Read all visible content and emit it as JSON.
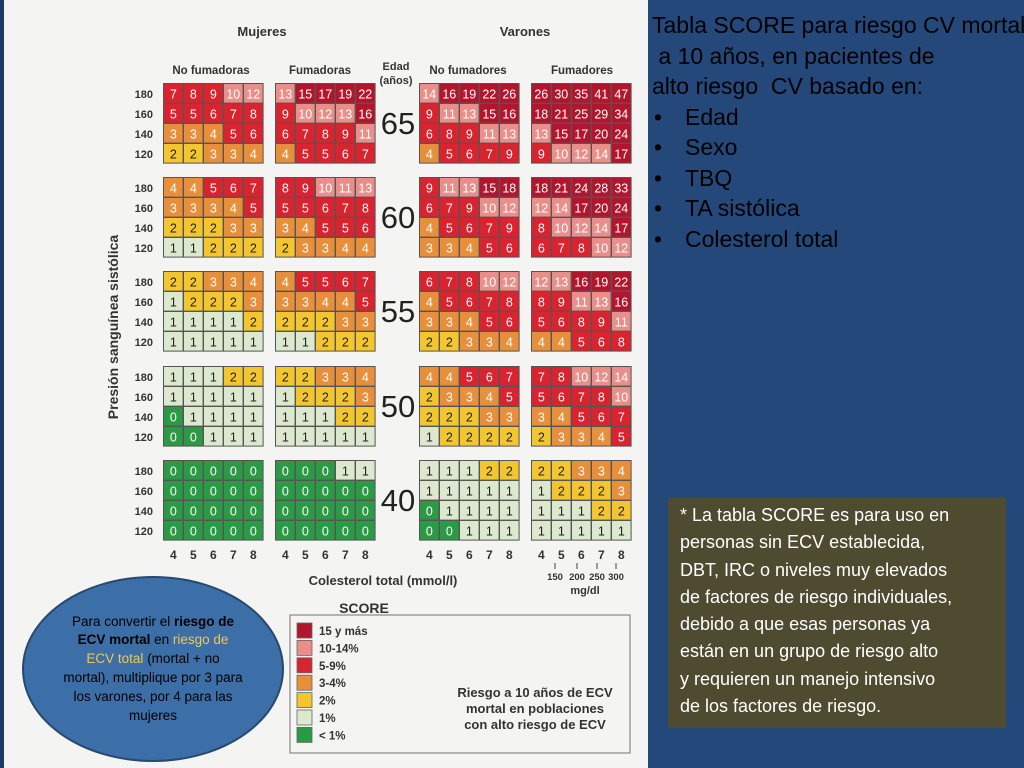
{
  "chart_data": {
    "type": "heatmap",
    "title": "SCORE",
    "group_labels": [
      "Mujeres",
      "Varones"
    ],
    "subgroup_labels": [
      "No fumadoras",
      "Fumadoras",
      "No fumadores",
      "Fumadores"
    ],
    "age_header": "Edad (años)",
    "ages": [
      "65",
      "60",
      "55",
      "50",
      "40"
    ],
    "sbp_labels": [
      "180",
      "160",
      "140",
      "120"
    ],
    "cholesterol_labels": [
      "4",
      "5",
      "6",
      "7",
      "8"
    ],
    "mgdl_labels": [
      "150",
      "200",
      "250",
      "300"
    ],
    "mgdl_unit": "mg/dl",
    "ylabel": "Presión sanguínea sistólica",
    "xlabel": "Colesterol total (mmol/l)",
    "panels": [
      [
        [
          [
            7,
            8,
            9,
            10,
            12
          ],
          [
            5,
            5,
            6,
            7,
            8
          ],
          [
            3,
            3,
            4,
            5,
            6
          ],
          [
            2,
            2,
            3,
            3,
            4
          ]
        ],
        [
          [
            13,
            15,
            17,
            19,
            22
          ],
          [
            9,
            10,
            12,
            13,
            16
          ],
          [
            6,
            7,
            8,
            9,
            11
          ],
          [
            4,
            5,
            5,
            6,
            7
          ]
        ],
        [
          [
            14,
            16,
            19,
            22,
            26
          ],
          [
            9,
            11,
            13,
            15,
            16
          ],
          [
            6,
            8,
            9,
            11,
            13
          ],
          [
            4,
            5,
            6,
            7,
            9
          ]
        ],
        [
          [
            26,
            30,
            35,
            41,
            47
          ],
          [
            18,
            21,
            25,
            29,
            34
          ],
          [
            13,
            15,
            17,
            20,
            24
          ],
          [
            9,
            10,
            12,
            14,
            17
          ]
        ]
      ],
      [
        [
          [
            4,
            4,
            5,
            6,
            7
          ],
          [
            3,
            3,
            3,
            4,
            5
          ],
          [
            2,
            2,
            2,
            3,
            3
          ],
          [
            1,
            1,
            2,
            2,
            2
          ]
        ],
        [
          [
            8,
            9,
            10,
            11,
            13
          ],
          [
            5,
            5,
            6,
            7,
            8
          ],
          [
            3,
            4,
            5,
            5,
            6
          ],
          [
            2,
            3,
            3,
            4,
            4
          ]
        ],
        [
          [
            9,
            11,
            13,
            15,
            18
          ],
          [
            6,
            7,
            9,
            10,
            12
          ],
          [
            4,
            5,
            6,
            7,
            9
          ],
          [
            3,
            3,
            4,
            5,
            6
          ]
        ],
        [
          [
            18,
            21,
            24,
            28,
            33
          ],
          [
            12,
            14,
            17,
            20,
            24
          ],
          [
            8,
            10,
            12,
            14,
            17
          ],
          [
            6,
            7,
            8,
            10,
            12
          ]
        ]
      ],
      [
        [
          [
            2,
            2,
            3,
            3,
            4
          ],
          [
            1,
            2,
            2,
            2,
            3
          ],
          [
            1,
            1,
            1,
            1,
            2
          ],
          [
            1,
            1,
            1,
            1,
            1
          ]
        ],
        [
          [
            4,
            5,
            5,
            6,
            7
          ],
          [
            3,
            3,
            4,
            4,
            5
          ],
          [
            2,
            2,
            2,
            3,
            3
          ],
          [
            1,
            1,
            2,
            2,
            2
          ]
        ],
        [
          [
            6,
            7,
            8,
            10,
            12
          ],
          [
            4,
            5,
            6,
            7,
            8
          ],
          [
            3,
            3,
            4,
            5,
            6
          ],
          [
            2,
            2,
            3,
            3,
            4
          ]
        ],
        [
          [
            12,
            13,
            16,
            19,
            22
          ],
          [
            8,
            9,
            11,
            13,
            16
          ],
          [
            5,
            6,
            8,
            9,
            11
          ],
          [
            4,
            4,
            5,
            6,
            8
          ]
        ]
      ],
      [
        [
          [
            1,
            1,
            1,
            2,
            2
          ],
          [
            1,
            1,
            1,
            1,
            1
          ],
          [
            0,
            1,
            1,
            1,
            1
          ],
          [
            0,
            0,
            1,
            1,
            1
          ]
        ],
        [
          [
            2,
            2,
            3,
            3,
            4
          ],
          [
            1,
            2,
            2,
            2,
            3
          ],
          [
            1,
            1,
            1,
            2,
            2
          ],
          [
            1,
            1,
            1,
            1,
            1
          ]
        ],
        [
          [
            4,
            4,
            5,
            6,
            7
          ],
          [
            2,
            3,
            3,
            4,
            5
          ],
          [
            2,
            2,
            2,
            3,
            3
          ],
          [
            1,
            2,
            2,
            2,
            2
          ]
        ],
        [
          [
            7,
            8,
            10,
            12,
            14
          ],
          [
            5,
            6,
            7,
            8,
            10
          ],
          [
            3,
            4,
            5,
            6,
            7
          ],
          [
            2,
            3,
            3,
            4,
            5
          ]
        ]
      ],
      [
        [
          [
            0,
            0,
            0,
            0,
            0
          ],
          [
            0,
            0,
            0,
            0,
            0
          ],
          [
            0,
            0,
            0,
            0,
            0
          ],
          [
            0,
            0,
            0,
            0,
            0
          ]
        ],
        [
          [
            0,
            0,
            0,
            1,
            1
          ],
          [
            0,
            0,
            0,
            0,
            0
          ],
          [
            0,
            0,
            0,
            0,
            0
          ],
          [
            0,
            0,
            0,
            0,
            0
          ]
        ],
        [
          [
            1,
            1,
            1,
            2,
            2
          ],
          [
            1,
            1,
            1,
            1,
            1
          ],
          [
            0,
            1,
            1,
            1,
            1
          ],
          [
            0,
            0,
            1,
            1,
            1
          ]
        ],
        [
          [
            2,
            2,
            3,
            3,
            4
          ],
          [
            1,
            2,
            2,
            2,
            3
          ],
          [
            1,
            1,
            1,
            2,
            2
          ],
          [
            1,
            1,
            1,
            1,
            1
          ]
        ]
      ]
    ],
    "legend": [
      {
        "label": "15 y más",
        "color": "#b3162c"
      },
      {
        "label": "10-14%",
        "color": "#e98e88"
      },
      {
        "label": "5-9%",
        "color": "#d9232f"
      },
      {
        "label": "3-4%",
        "color": "#e88f3c"
      },
      {
        "label": "2%",
        "color": "#f3c52f"
      },
      {
        "label": "1%",
        "color": "#dce9cf"
      },
      {
        "label": "< 1%",
        "color": "#2a9a44"
      }
    ],
    "legend_caption": [
      "Riesgo a 10 años de ECV",
      "mortal en poblaciones",
      "con alto riesgo de ECV"
    ]
  },
  "title_lines": [
    "Tabla SCORE para riesgo CV mortal",
    " a 10 años, en pacientes de",
    "alto riesgo  CV basado en:"
  ],
  "bullets": [
    "Edad",
    "Sexo",
    "TBQ",
    "TA sistólica",
    "Colesterol total"
  ],
  "bullet_char": "•",
  "note_lines": [
    "* La tabla SCORE es para uso en",
    "personas sin ECV establecida,",
    "DBT, IRC o niveles muy elevados",
    "de factores de riesgo individuales,",
    "debido a que esas personas ya",
    "están en un grupo de riesgo alto",
    "y requieren un manejo intensivo",
    "de los factores de riesgo."
  ],
  "ellipse": {
    "p1": "Para convertir el ",
    "b1": "riesgo de ECV mortal",
    "p2": " en ",
    "h1": "riesgo de ECV total",
    "p3": " (mortal + no mortal), multiplique por 3 para los varones, por 4 para las mujeres"
  }
}
